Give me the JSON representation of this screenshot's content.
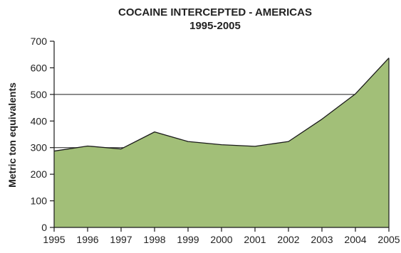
{
  "chart_data": {
    "type": "area",
    "title": "COCAINE INTERCEPTED - AMERICAS",
    "subtitle": "1995-2005",
    "xlabel": "",
    "ylabel": "Metric ton equivalents",
    "x": [
      "1995",
      "1996",
      "1997",
      "1998",
      "1999",
      "2000",
      "2001",
      "2002",
      "2003",
      "2004",
      "2005"
    ],
    "series": [
      {
        "values": [
          287,
          306,
          295,
          359,
          323,
          311,
          305,
          323,
          407,
          502,
          637
        ]
      }
    ],
    "ylim": [
      0,
      700
    ],
    "yticks": [
      0,
      100,
      200,
      300,
      400,
      500,
      600,
      700
    ],
    "grid": "horizontal lines at 300 and 500",
    "gridlines": [
      300,
      500
    ],
    "legend": "none",
    "colors": {
      "fill": "#a2bf78",
      "stroke": "#1a1a1a",
      "gridline": "#1a1a1a",
      "text": "#222222"
    }
  }
}
